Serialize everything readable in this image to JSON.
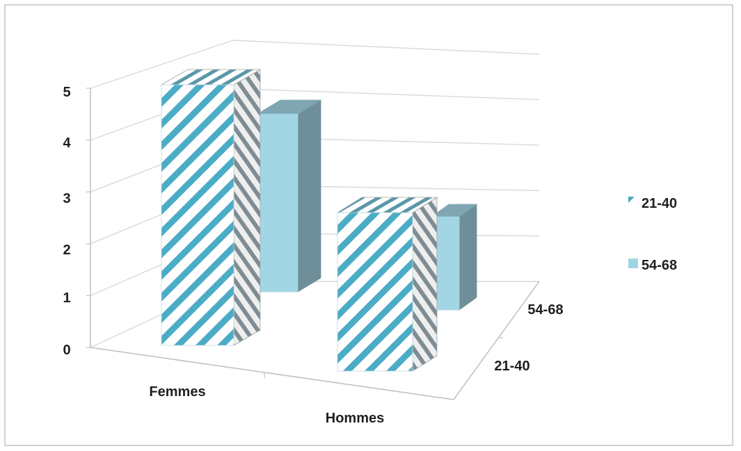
{
  "chart_data": {
    "type": "bar",
    "title": "",
    "xlabel": "",
    "ylabel": "",
    "categories": [
      "Femmes",
      "Hommes"
    ],
    "series": [
      {
        "name": "21-40",
        "values": [
          5,
          3
        ],
        "pattern": "diagonal-stripes",
        "color": "#4bacc6"
      },
      {
        "name": "54-68",
        "values": [
          4,
          2
        ],
        "pattern": "solid",
        "color": "#9fd5e3"
      }
    ],
    "depth_labels": [
      "21-40",
      "54-68"
    ],
    "ylim": [
      0,
      5
    ],
    "yticks": [
      "0",
      "1",
      "2",
      "3",
      "4",
      "5"
    ],
    "grid": true,
    "legend_position": "right",
    "view": "3d-column"
  },
  "colors": {
    "stripe": "#4bacc6",
    "solid_front": "#a3d6e5",
    "solid_side": "#6e8f9a",
    "solid_top": "#7ea6b3",
    "grid": "#d9d9d9",
    "axis": "#bfbfbf",
    "frame": "#d2d2d2"
  }
}
